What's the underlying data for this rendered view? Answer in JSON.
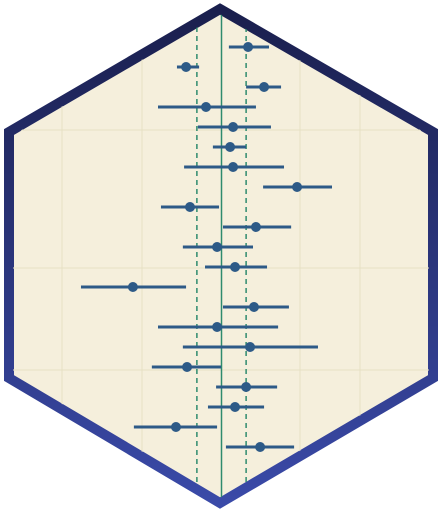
{
  "chart_data": {
    "type": "forest",
    "values": [
      1.08,
      -1.44,
      1.73,
      -0.63,
      0.47,
      0.35,
      0.47,
      3.07,
      -1.28,
      1.4,
      -0.18,
      0.55,
      -3.6,
      1.32,
      -0.18,
      1.16,
      -1.4,
      1.0,
      0.55,
      -1.85,
      1.57
    ],
    "low": [
      0.3,
      -1.81,
      1.0,
      -2.58,
      -0.96,
      -0.35,
      -1.52,
      1.69,
      -2.46,
      0.06,
      -1.57,
      -0.67,
      -5.71,
      0.06,
      -2.58,
      -1.57,
      -2.83,
      -0.22,
      -0.55,
      -3.56,
      0.18
    ],
    "high": [
      1.93,
      -0.91,
      2.42,
      1.4,
      2.01,
      1.0,
      2.54,
      4.49,
      -0.1,
      2.83,
      1.28,
      1.85,
      -1.44,
      2.74,
      2.3,
      3.92,
      -0.02,
      2.26,
      1.73,
      -0.18,
      2.95
    ],
    "reference": 0,
    "dashed": [
      -1,
      1
    ],
    "xlim": [
      -9,
      9
    ],
    "color": "#2d5a87",
    "reference_color": "#2e8b6e"
  }
}
